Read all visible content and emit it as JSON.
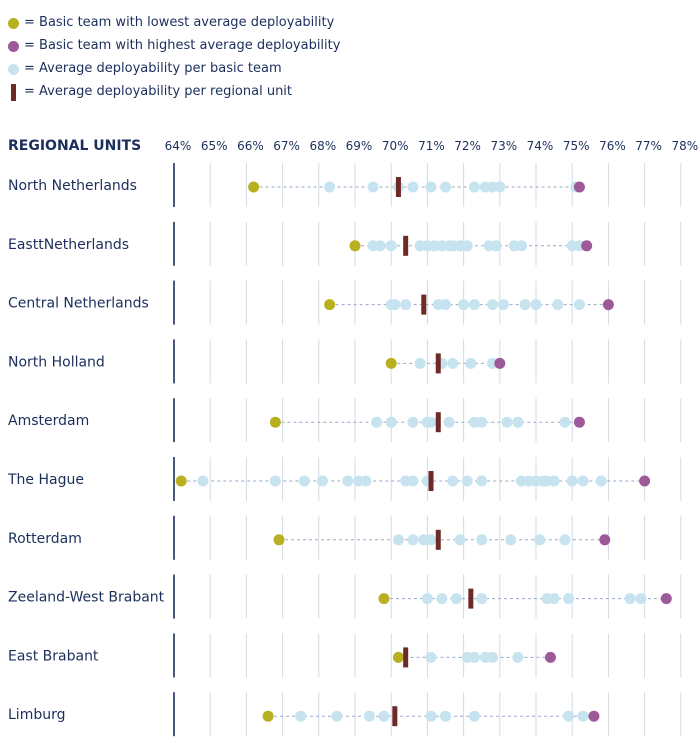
{
  "legend": [
    {
      "label": "= Basic team with lowest average deployability",
      "kind": "circle",
      "color": "#b8b020"
    },
    {
      "label": "= Basic team with highest average deployability",
      "kind": "circle",
      "color": "#9c5a98"
    },
    {
      "label": "= Average deployability per basic team",
      "kind": "circle",
      "color": "#c6e3ef"
    },
    {
      "label": "= Average deployability per regional unit",
      "kind": "bar",
      "color": "#6e2a26"
    }
  ],
  "chart_data": {
    "type": "scatter",
    "axis_title": "REGIONAL UNITS",
    "x_ticks": [
      "64%",
      "65%",
      "66%",
      "67%",
      "68%",
      "69%",
      "70%",
      "71%",
      "72%",
      "73%",
      "74%",
      "75%",
      "76%",
      "77%",
      "78%"
    ],
    "xlim": [
      64,
      78
    ],
    "colors": {
      "lowest": "#b8b020",
      "highest": "#9c5a98",
      "team": "#c6e3ef",
      "regional_average": "#6e2a26",
      "axis": "#1c2f5c",
      "grid": "#d3dbe6",
      "connector": "#9aa8c4"
    },
    "units": [
      {
        "name": "North Netherlands",
        "lowest": 66.2,
        "highest": 75.2,
        "average": 70.2,
        "teams": [
          68.3,
          69.5,
          70.2,
          70.6,
          71.1,
          71.5,
          72.3,
          72.6,
          72.8,
          73.0,
          75.1
        ]
      },
      {
        "name": "EasttNetherlands",
        "lowest": 69.0,
        "highest": 75.4,
        "average": 70.4,
        "teams": [
          69.5,
          69.7,
          70.0,
          70.8,
          71.0,
          71.2,
          71.4,
          71.6,
          71.7,
          71.9,
          72.1,
          72.7,
          72.9,
          73.4,
          73.6,
          75.0,
          75.2
        ]
      },
      {
        "name": "Central Netherlands",
        "lowest": 68.3,
        "highest": 76.0,
        "average": 70.9,
        "teams": [
          70.0,
          70.1,
          70.4,
          71.3,
          71.5,
          72.0,
          72.3,
          72.8,
          73.1,
          73.7,
          74.0,
          74.6,
          75.2
        ]
      },
      {
        "name": "North Holland",
        "lowest": 70.0,
        "highest": 73.0,
        "average": 71.3,
        "teams": [
          70.8,
          71.4,
          71.7,
          72.2,
          72.8
        ]
      },
      {
        "name": "Amsterdam",
        "lowest": 66.8,
        "highest": 75.2,
        "average": 71.3,
        "teams": [
          69.6,
          70.0,
          70.6,
          71.0,
          71.1,
          71.6,
          72.3,
          72.5,
          73.2,
          73.5,
          74.8
        ]
      },
      {
        "name": "The Hague",
        "lowest": 64.2,
        "highest": 77.0,
        "average": 71.1,
        "teams": [
          64.8,
          66.8,
          67.6,
          68.1,
          68.8,
          69.1,
          69.3,
          70.4,
          70.6,
          71.0,
          71.7,
          72.1,
          72.5,
          73.6,
          73.8,
          74.0,
          74.2,
          74.3,
          74.5,
          75.0,
          75.3,
          75.8
        ]
      },
      {
        "name": "Rotterdam",
        "lowest": 66.9,
        "highest": 75.9,
        "average": 71.3,
        "teams": [
          70.2,
          70.6,
          70.9,
          71.1,
          71.9,
          72.5,
          73.3,
          74.1,
          74.8
        ]
      },
      {
        "name": "Zeeland-West Brabant",
        "lowest": 69.8,
        "highest": 77.6,
        "average": 72.2,
        "teams": [
          71.0,
          71.4,
          71.8,
          72.5,
          74.3,
          74.5,
          74.9,
          76.6,
          76.9
        ]
      },
      {
        "name": "East Brabant",
        "lowest": 70.2,
        "highest": 74.4,
        "average": 70.4,
        "teams": [
          71.1,
          72.1,
          72.3,
          72.6,
          72.8,
          73.5
        ]
      },
      {
        "name": "Limburg",
        "lowest": 66.6,
        "highest": 75.6,
        "average": 70.1,
        "teams": [
          67.5,
          68.5,
          69.4,
          69.8,
          71.1,
          71.5,
          72.3,
          74.9,
          75.3
        ]
      }
    ]
  }
}
